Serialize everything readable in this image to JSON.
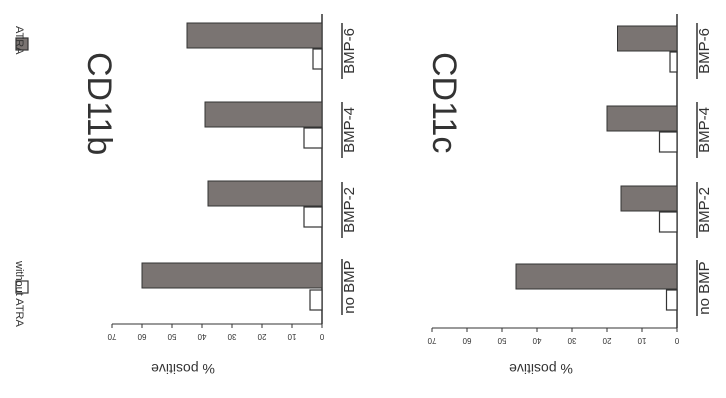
{
  "legend": {
    "items": [
      {
        "label": "without ATRA",
        "color": "#ffffff"
      },
      {
        "label": "ATRA",
        "color": "#7a7472"
      }
    ]
  },
  "colors": {
    "atra": "#7a7472",
    "without": "#ffffff",
    "stroke": "#333333"
  },
  "chart_data": [
    {
      "type": "bar",
      "orientation": "horizontal",
      "title": "CD11b",
      "categories": [
        "no BMP",
        "BMP-2",
        "BMP-4",
        "BMP-6"
      ],
      "series": [
        {
          "name": "without ATRA",
          "values": [
            4,
            6,
            6,
            3
          ]
        },
        {
          "name": "ATRA",
          "values": [
            60,
            38,
            39,
            45
          ]
        }
      ],
      "xlabel": "% positive",
      "xlim": [
        0,
        70
      ],
      "xticks": [
        0,
        10,
        20,
        30,
        40,
        50,
        60,
        70
      ],
      "grid": false,
      "legend": "top-left"
    },
    {
      "type": "bar",
      "orientation": "horizontal",
      "title": "CD11c",
      "categories": [
        "no BMP",
        "BMP-2",
        "BMP-4",
        "BMP-6"
      ],
      "series": [
        {
          "name": "without ATRA",
          "values": [
            3,
            5,
            5,
            2
          ]
        },
        {
          "name": "ATRA",
          "values": [
            46,
            16,
            20,
            17
          ]
        }
      ],
      "xlabel": "% positive",
      "xlim": [
        0,
        70
      ],
      "xticks": [
        0,
        10,
        20,
        30,
        40,
        50,
        60,
        70
      ],
      "grid": false
    }
  ]
}
